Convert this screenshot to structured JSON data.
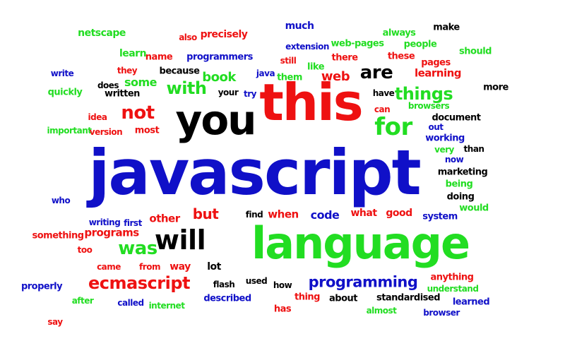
{
  "word_cloud": {
    "colors": {
      "blue": "#1010c8",
      "red": "#ee1111",
      "green": "#22dd22",
      "black": "#000000"
    },
    "words": [
      {
        "text": "javascript",
        "color": "blue"
      },
      {
        "text": "this",
        "color": "red"
      },
      {
        "text": "language",
        "color": "green"
      },
      {
        "text": "you",
        "color": "black"
      },
      {
        "text": "for",
        "color": "green"
      },
      {
        "text": "not",
        "color": "red"
      },
      {
        "text": "will",
        "color": "black"
      },
      {
        "text": "was",
        "color": "green"
      },
      {
        "text": "are",
        "color": "black"
      },
      {
        "text": "with",
        "color": "green"
      },
      {
        "text": "things",
        "color": "green"
      },
      {
        "text": "ecmascript",
        "color": "red"
      },
      {
        "text": "programming",
        "color": "blue"
      },
      {
        "text": "but",
        "color": "red"
      },
      {
        "text": "book",
        "color": "green"
      },
      {
        "text": "web",
        "color": "red"
      },
      {
        "text": "code",
        "color": "blue"
      },
      {
        "text": "some",
        "color": "green"
      },
      {
        "text": "learning",
        "color": "red"
      },
      {
        "text": "programs",
        "color": "red"
      },
      {
        "text": "netscape",
        "color": "green"
      },
      {
        "text": "also",
        "color": "red"
      },
      {
        "text": "precisely",
        "color": "red"
      },
      {
        "text": "much",
        "color": "blue"
      },
      {
        "text": "always",
        "color": "green"
      },
      {
        "text": "make",
        "color": "black"
      },
      {
        "text": "learn",
        "color": "green"
      },
      {
        "text": "name",
        "color": "red"
      },
      {
        "text": "programmers",
        "color": "blue"
      },
      {
        "text": "extension",
        "color": "blue"
      },
      {
        "text": "web-pages",
        "color": "green"
      },
      {
        "text": "people",
        "color": "green"
      },
      {
        "text": "should",
        "color": "green"
      },
      {
        "text": "still",
        "color": "red"
      },
      {
        "text": "there",
        "color": "red"
      },
      {
        "text": "these",
        "color": "red"
      },
      {
        "text": "they",
        "color": "red"
      },
      {
        "text": "because",
        "color": "black"
      },
      {
        "text": "like",
        "color": "green"
      },
      {
        "text": "pages",
        "color": "red"
      },
      {
        "text": "write",
        "color": "blue"
      },
      {
        "text": "java",
        "color": "blue"
      },
      {
        "text": "them",
        "color": "green"
      },
      {
        "text": "does",
        "color": "black"
      },
      {
        "text": "more",
        "color": "black"
      },
      {
        "text": "quickly",
        "color": "green"
      },
      {
        "text": "written",
        "color": "black"
      },
      {
        "text": "your",
        "color": "black"
      },
      {
        "text": "try",
        "color": "blue"
      },
      {
        "text": "have",
        "color": "black"
      },
      {
        "text": "can",
        "color": "red"
      },
      {
        "text": "browsers",
        "color": "green"
      },
      {
        "text": "idea",
        "color": "red"
      },
      {
        "text": "document",
        "color": "black"
      },
      {
        "text": "important",
        "color": "green"
      },
      {
        "text": "version",
        "color": "red"
      },
      {
        "text": "most",
        "color": "red"
      },
      {
        "text": "out",
        "color": "blue"
      },
      {
        "text": "working",
        "color": "blue"
      },
      {
        "text": "very",
        "color": "green"
      },
      {
        "text": "than",
        "color": "black"
      },
      {
        "text": "now",
        "color": "blue"
      },
      {
        "text": "marketing",
        "color": "black"
      },
      {
        "text": "being",
        "color": "green"
      },
      {
        "text": "who",
        "color": "blue"
      },
      {
        "text": "doing",
        "color": "black"
      },
      {
        "text": "would",
        "color": "green"
      },
      {
        "text": "writing",
        "color": "blue"
      },
      {
        "text": "first",
        "color": "blue"
      },
      {
        "text": "other",
        "color": "red"
      },
      {
        "text": "find",
        "color": "black"
      },
      {
        "text": "when",
        "color": "red"
      },
      {
        "text": "what",
        "color": "red"
      },
      {
        "text": "good",
        "color": "red"
      },
      {
        "text": "system",
        "color": "blue"
      },
      {
        "text": "something",
        "color": "red"
      },
      {
        "text": "too",
        "color": "red"
      },
      {
        "text": "came",
        "color": "red"
      },
      {
        "text": "from",
        "color": "red"
      },
      {
        "text": "way",
        "color": "red"
      },
      {
        "text": "lot",
        "color": "black"
      },
      {
        "text": "anything",
        "color": "red"
      },
      {
        "text": "properly",
        "color": "blue"
      },
      {
        "text": "flash",
        "color": "black"
      },
      {
        "text": "used",
        "color": "black"
      },
      {
        "text": "how",
        "color": "black"
      },
      {
        "text": "understand",
        "color": "green"
      },
      {
        "text": "after",
        "color": "green"
      },
      {
        "text": "called",
        "color": "blue"
      },
      {
        "text": "internet",
        "color": "green"
      },
      {
        "text": "described",
        "color": "blue"
      },
      {
        "text": "thing",
        "color": "red"
      },
      {
        "text": "about",
        "color": "black"
      },
      {
        "text": "standardised",
        "color": "black"
      },
      {
        "text": "learned",
        "color": "blue"
      },
      {
        "text": "has",
        "color": "red"
      },
      {
        "text": "almost",
        "color": "green"
      },
      {
        "text": "browser",
        "color": "blue"
      },
      {
        "text": "say",
        "color": "red"
      }
    ]
  }
}
